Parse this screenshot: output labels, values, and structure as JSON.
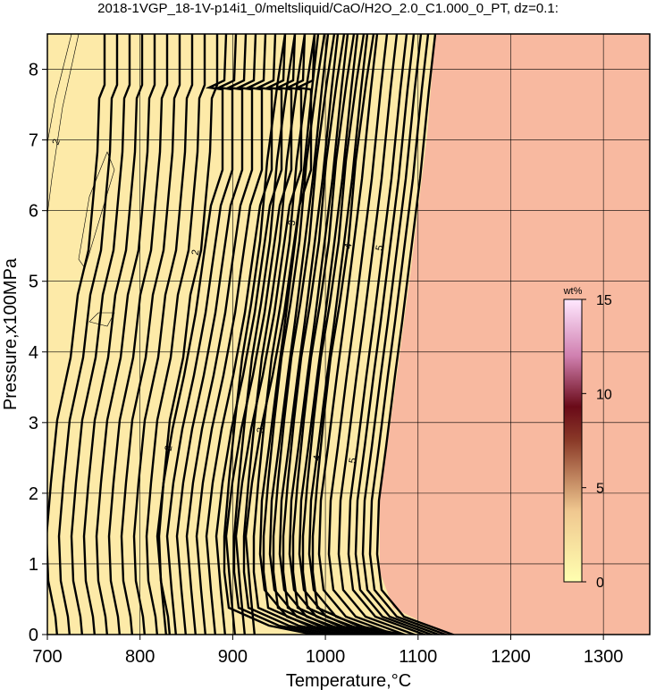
{
  "chart_data": {
    "type": "contour",
    "title": "2018-1VGP_18-1V-p14i1_0/meltsliquid/CaO/H2O_2.0_C1.000_0_PT, dz=0.1:",
    "x_label": "Temperature,°C",
    "y_label": "Pressure,x100MPa",
    "xlim": [
      700,
      1350
    ],
    "xticks": [
      700,
      800,
      900,
      1000,
      1100,
      1200,
      1300
    ],
    "ylim": [
      0,
      8.5
    ],
    "yticks": [
      0,
      1,
      2,
      3,
      4,
      5,
      6,
      7,
      8
    ],
    "grid": true,
    "contour_levels": [
      2,
      3,
      4,
      5
    ],
    "colorbar": {
      "label": "wt%",
      "lim": [
        0,
        15
      ],
      "ticks": [
        0,
        5,
        10,
        15
      ]
    }
  }
}
